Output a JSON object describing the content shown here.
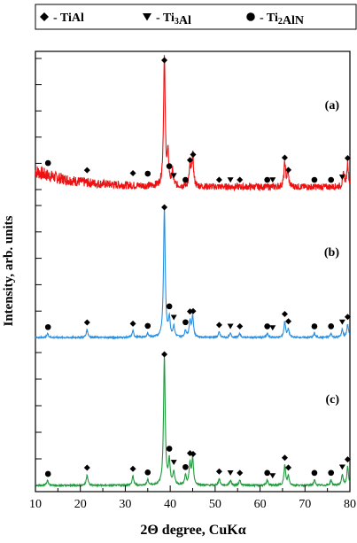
{
  "chart_data": {
    "type": "line",
    "xlabel": "2Θ degree, CuKα",
    "ylabel": "Intensity, arb. units",
    "xlim": [
      10,
      80
    ],
    "x_ticks": [
      10,
      20,
      30,
      40,
      50,
      60,
      70,
      80
    ],
    "y_ticks_shown": false,
    "grid": false,
    "legend_position": "top",
    "legend": [
      {
        "marker": "diamond",
        "text": " - TiAl"
      },
      {
        "marker": "triangle-down",
        "text": " - Ti3Al"
      },
      {
        "marker": "circle",
        "text": " - Ti2AlN"
      }
    ],
    "panels": [
      {
        "label": "(a)",
        "color": "#ee1111",
        "baseline_noise": "high",
        "peaks": [
          [
            38.7,
            0.98
          ],
          [
            39.5,
            0.22
          ],
          [
            40.5,
            0.1
          ],
          [
            44.4,
            0.14
          ],
          [
            45.0,
            0.24
          ],
          [
            65.5,
            0.18
          ],
          [
            66.2,
            0.1
          ],
          [
            78.6,
            0.1
          ],
          [
            79.5,
            0.18
          ]
        ],
        "markers": [
          {
            "m": "diamond",
            "x": 21.5
          },
          {
            "m": "diamond",
            "x": 31.7
          },
          {
            "m": "diamond",
            "x": 38.7
          },
          {
            "m": "diamond",
            "x": 44.4
          },
          {
            "m": "diamond",
            "x": 45.1
          },
          {
            "m": "diamond",
            "x": 50.9
          },
          {
            "m": "diamond",
            "x": 55.5
          },
          {
            "m": "diamond",
            "x": 65.5
          },
          {
            "m": "diamond",
            "x": 66.3
          },
          {
            "m": "diamond",
            "x": 79.5
          },
          {
            "m": "triangle-down",
            "x": 40.8
          },
          {
            "m": "triangle-down",
            "x": 53.4
          },
          {
            "m": "triangle-down",
            "x": 62.8
          },
          {
            "m": "triangle-down",
            "x": 78.3
          },
          {
            "m": "circle",
            "x": 12.8
          },
          {
            "m": "circle",
            "x": 35.0
          },
          {
            "m": "circle",
            "x": 39.8
          },
          {
            "m": "circle",
            "x": 43.4
          },
          {
            "m": "circle",
            "x": 61.6
          },
          {
            "m": "circle",
            "x": 72.1
          },
          {
            "m": "circle",
            "x": 75.8
          }
        ]
      },
      {
        "label": "(b)",
        "color": "#2b8fe0",
        "baseline_noise": "low",
        "peaks": [
          [
            12.7,
            0.03
          ],
          [
            21.5,
            0.06
          ],
          [
            31.7,
            0.05
          ],
          [
            35.0,
            0.03
          ],
          [
            38.7,
            0.98
          ],
          [
            39.8,
            0.14
          ],
          [
            40.8,
            0.08
          ],
          [
            43.4,
            0.05
          ],
          [
            44.4,
            0.12
          ],
          [
            45.0,
            0.16
          ],
          [
            50.9,
            0.04
          ],
          [
            53.4,
            0.03
          ],
          [
            55.5,
            0.03
          ],
          [
            61.6,
            0.03
          ],
          [
            65.5,
            0.12
          ],
          [
            66.3,
            0.06
          ],
          [
            72.1,
            0.03
          ],
          [
            75.8,
            0.03
          ],
          [
            78.3,
            0.06
          ],
          [
            79.5,
            0.1
          ]
        ],
        "markers": [
          {
            "m": "diamond",
            "x": 21.5
          },
          {
            "m": "diamond",
            "x": 31.7
          },
          {
            "m": "diamond",
            "x": 38.7
          },
          {
            "m": "diamond",
            "x": 44.4
          },
          {
            "m": "diamond",
            "x": 45.1
          },
          {
            "m": "diamond",
            "x": 50.9
          },
          {
            "m": "diamond",
            "x": 55.5
          },
          {
            "m": "diamond",
            "x": 65.5
          },
          {
            "m": "diamond",
            "x": 66.3
          },
          {
            "m": "diamond",
            "x": 79.5
          },
          {
            "m": "triangle-down",
            "x": 40.8
          },
          {
            "m": "triangle-down",
            "x": 53.4
          },
          {
            "m": "triangle-down",
            "x": 62.8
          },
          {
            "m": "triangle-down",
            "x": 78.3
          },
          {
            "m": "circle",
            "x": 12.8
          },
          {
            "m": "circle",
            "x": 35.0
          },
          {
            "m": "circle",
            "x": 39.8
          },
          {
            "m": "circle",
            "x": 43.4
          },
          {
            "m": "circle",
            "x": 61.6
          },
          {
            "m": "circle",
            "x": 72.1
          },
          {
            "m": "circle",
            "x": 75.8
          }
        ]
      },
      {
        "label": "(c)",
        "color": "#1f9a3c",
        "baseline_noise": "low",
        "peaks": [
          [
            12.7,
            0.04
          ],
          [
            21.5,
            0.08
          ],
          [
            31.7,
            0.07
          ],
          [
            35.0,
            0.04
          ],
          [
            38.7,
            0.97
          ],
          [
            39.8,
            0.18
          ],
          [
            40.8,
            0.1
          ],
          [
            43.4,
            0.07
          ],
          [
            44.4,
            0.16
          ],
          [
            45.0,
            0.2
          ],
          [
            50.9,
            0.05
          ],
          [
            53.4,
            0.04
          ],
          [
            55.5,
            0.04
          ],
          [
            61.6,
            0.04
          ],
          [
            65.5,
            0.15
          ],
          [
            66.3,
            0.07
          ],
          [
            72.1,
            0.04
          ],
          [
            75.8,
            0.04
          ],
          [
            78.3,
            0.08
          ],
          [
            79.5,
            0.14
          ]
        ],
        "markers": [
          {
            "m": "diamond",
            "x": 21.5
          },
          {
            "m": "diamond",
            "x": 31.7
          },
          {
            "m": "diamond",
            "x": 38.7
          },
          {
            "m": "diamond",
            "x": 44.4
          },
          {
            "m": "diamond",
            "x": 45.1
          },
          {
            "m": "diamond",
            "x": 50.9
          },
          {
            "m": "diamond",
            "x": 55.5
          },
          {
            "m": "diamond",
            "x": 65.5
          },
          {
            "m": "diamond",
            "x": 66.3
          },
          {
            "m": "diamond",
            "x": 79.5
          },
          {
            "m": "triangle-down",
            "x": 40.8
          },
          {
            "m": "triangle-down",
            "x": 53.4
          },
          {
            "m": "triangle-down",
            "x": 62.8
          },
          {
            "m": "triangle-down",
            "x": 78.3
          },
          {
            "m": "circle",
            "x": 12.8
          },
          {
            "m": "circle",
            "x": 35.0
          },
          {
            "m": "circle",
            "x": 39.8
          },
          {
            "m": "circle",
            "x": 43.4
          },
          {
            "m": "circle",
            "x": 61.6
          },
          {
            "m": "circle",
            "x": 72.1
          },
          {
            "m": "circle",
            "x": 75.8
          }
        ]
      }
    ]
  }
}
